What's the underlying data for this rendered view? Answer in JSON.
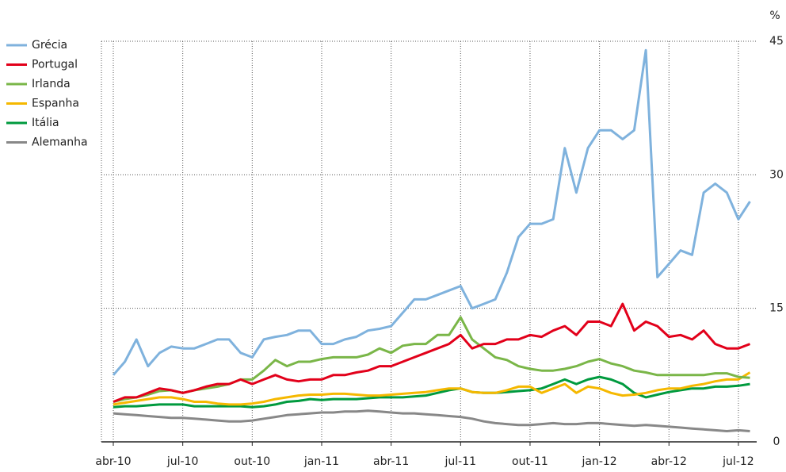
{
  "chart_data": {
    "type": "line",
    "y_label": "%",
    "categories": [
      "abr-10",
      null,
      null,
      null,
      null,
      null,
      "jul-10",
      null,
      null,
      null,
      null,
      null,
      "out-10",
      null,
      null,
      null,
      null,
      null,
      "jan-11",
      null,
      null,
      null,
      null,
      null,
      "abr-11",
      null,
      null,
      null,
      null,
      null,
      "jul-11",
      null,
      null,
      null,
      null,
      null,
      "out-11",
      null,
      null,
      null,
      null,
      null,
      "jan-12",
      null,
      null,
      null,
      null,
      null,
      "abr-12",
      null,
      null,
      null,
      null,
      null,
      "jul-12",
      null
    ],
    "series": [
      {
        "name": "Grécia",
        "color": "#7fb2dd",
        "values": [
          7.5,
          9,
          11.5,
          8.5,
          10,
          10.7,
          10.5,
          10.5,
          11,
          11.5,
          11.5,
          10,
          9.5,
          11.5,
          11.8,
          12,
          12.5,
          12.5,
          11,
          11,
          11.5,
          11.8,
          12.5,
          12.7,
          13,
          14.5,
          16,
          16,
          16.5,
          17,
          17.5,
          15,
          15.5,
          16,
          19,
          23,
          24.5,
          24.5,
          25,
          33,
          28,
          33,
          35,
          35,
          34,
          35,
          44,
          18.5,
          20,
          21.5,
          21,
          28,
          29,
          28,
          25,
          27
        ]
      },
      {
        "name": "Portugal",
        "color": "#e2001a",
        "values": [
          4.5,
          5,
          5,
          5.5,
          6,
          5.8,
          5.5,
          5.8,
          6.2,
          6.5,
          6.5,
          7,
          6.5,
          7,
          7.5,
          7,
          6.8,
          7,
          7,
          7.5,
          7.5,
          7.8,
          8,
          8.5,
          8.5,
          9,
          9.5,
          10,
          10.5,
          11,
          12,
          10.5,
          11,
          11,
          11.5,
          11.5,
          12,
          11.8,
          12.5,
          13,
          12,
          13.5,
          13.5,
          13,
          15.5,
          12.5,
          13.5,
          13,
          11.8,
          12,
          11.5,
          12.5,
          11,
          10.5,
          10.5,
          11
        ]
      },
      {
        "name": "Irlanda",
        "color": "#7ab648",
        "values": [
          4.5,
          4.8,
          5,
          5.3,
          5.7,
          5.8,
          5.5,
          5.8,
          6,
          6.2,
          6.5,
          7,
          7,
          8,
          9.2,
          8.5,
          9,
          9,
          9.3,
          9.5,
          9.5,
          9.5,
          9.8,
          10.5,
          10,
          10.8,
          11,
          11,
          12,
          12,
          14,
          11.5,
          10.5,
          9.5,
          9.2,
          8.5,
          8.2,
          8,
          8,
          8.2,
          8.5,
          9,
          9.3,
          8.8,
          8.5,
          8,
          7.8,
          7.5,
          7.5,
          7.5,
          7.5,
          7.5,
          7.7,
          7.7,
          7.3,
          7.2
        ]
      },
      {
        "name": "Espanha",
        "color": "#f5b800",
        "values": [
          4.2,
          4.4,
          4.6,
          4.8,
          5,
          5,
          4.8,
          4.5,
          4.5,
          4.3,
          4.2,
          4.2,
          4.3,
          4.5,
          4.8,
          5,
          5.2,
          5.3,
          5.3,
          5.4,
          5.4,
          5.3,
          5.2,
          5.2,
          5.3,
          5.4,
          5.5,
          5.6,
          5.8,
          6,
          6,
          5.6,
          5.5,
          5.5,
          5.8,
          6.2,
          6.2,
          5.5,
          6,
          6.5,
          5.5,
          6.2,
          6,
          5.5,
          5.2,
          5.3,
          5.5,
          5.8,
          6,
          6,
          6.3,
          6.5,
          6.8,
          7,
          7,
          7.8
        ]
      },
      {
        "name": "Itália",
        "color": "#009a3e",
        "values": [
          3.9,
          4,
          4,
          4.1,
          4.2,
          4.2,
          4.2,
          4,
          4,
          4,
          4,
          4,
          3.9,
          4,
          4.2,
          4.5,
          4.6,
          4.8,
          4.7,
          4.8,
          4.8,
          4.8,
          4.9,
          5,
          5,
          5,
          5.1,
          5.2,
          5.5,
          5.8,
          6,
          5.6,
          5.5,
          5.5,
          5.6,
          5.7,
          5.8,
          6,
          6.5,
          7,
          6.5,
          7,
          7.3,
          7,
          6.5,
          5.5,
          5,
          5.3,
          5.6,
          5.8,
          6,
          6,
          6.2,
          6.2,
          6.3,
          6.5
        ]
      },
      {
        "name": "Alemanha",
        "color": "#888888",
        "values": [
          3.2,
          3.1,
          3,
          2.9,
          2.8,
          2.7,
          2.7,
          2.6,
          2.5,
          2.4,
          2.3,
          2.3,
          2.4,
          2.6,
          2.8,
          3,
          3.1,
          3.2,
          3.3,
          3.3,
          3.4,
          3.4,
          3.5,
          3.4,
          3.3,
          3.2,
          3.2,
          3.1,
          3,
          2.9,
          2.8,
          2.6,
          2.3,
          2.1,
          2,
          1.9,
          1.9,
          2,
          2.1,
          2,
          2,
          2.1,
          2.1,
          2,
          1.9,
          1.8,
          1.9,
          1.8,
          1.7,
          1.6,
          1.5,
          1.4,
          1.3,
          1.2,
          1.3,
          1.2
        ]
      }
    ],
    "ylim": [
      0,
      45
    ],
    "yticks": [
      0,
      15,
      30,
      45
    ],
    "grid": true,
    "legend": "top-left"
  }
}
